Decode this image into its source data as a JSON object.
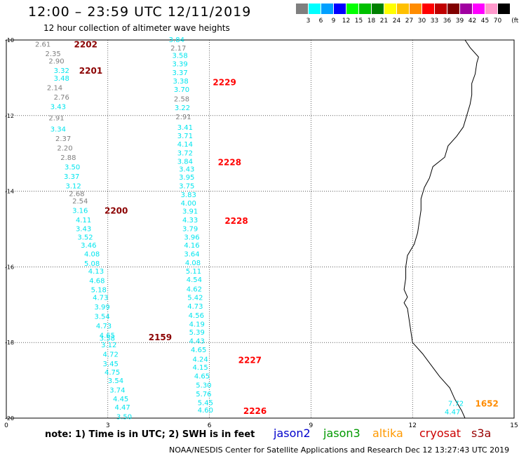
{
  "header": {
    "title": "12:00 – 23:59 UTC 12/11/2019",
    "subtitle": "12 hour collection of altimeter wave heights"
  },
  "legend": {
    "unit": "(ft)",
    "bins": [
      {
        "label": "3",
        "color": "#7f7f7f"
      },
      {
        "label": "6",
        "color": "#00ffff"
      },
      {
        "label": "9",
        "color": "#00a0ff"
      },
      {
        "label": "12",
        "color": "#0000ff"
      },
      {
        "label": "15",
        "color": "#00ff00"
      },
      {
        "label": "18",
        "color": "#00c000"
      },
      {
        "label": "21",
        "color": "#008000"
      },
      {
        "label": "24",
        "color": "#ffff00"
      },
      {
        "label": "27",
        "color": "#ffc000"
      },
      {
        "label": "30",
        "color": "#ff8c00"
      },
      {
        "label": "33",
        "color": "#ff0000"
      },
      {
        "label": "36",
        "color": "#c00000"
      },
      {
        "label": "39",
        "color": "#800000"
      },
      {
        "label": "42",
        "color": "#a000a0"
      },
      {
        "label": "45",
        "color": "#ff00ff"
      },
      {
        "label": "70",
        "color": "#ff99cc"
      },
      {
        "label": "",
        "color": "#000000"
      }
    ]
  },
  "map": {
    "lon_ticks": [
      "0",
      "3",
      "6",
      "9",
      "12",
      "15"
    ],
    "lat_ticks": [
      "-10",
      "-12",
      "-14",
      "-16",
      "-18",
      "-20"
    ],
    "lon_range": [
      0,
      15
    ],
    "lat_range": [
      -10,
      -20
    ],
    "grid": true
  },
  "tracks": [
    {
      "time_label": "2202",
      "time_color": "#8b0000",
      "time_lat": -10.1,
      "time_lon": 2.0,
      "points": [
        [
          -10.1,
          0.85,
          "2.61",
          "#7f7f7f"
        ],
        [
          -10.35,
          1.15,
          "2.35",
          "#7f7f7f"
        ],
        [
          -10.55,
          1.25,
          "2.90",
          "#7f7f7f"
        ]
      ]
    },
    {
      "time_label": "2201",
      "time_color": "#8b0000",
      "time_lat": -10.8,
      "time_lon": 2.15,
      "points": [
        [
          -10.8,
          1.4,
          "3.32",
          "#00e5ee"
        ],
        [
          -11.0,
          1.4,
          "3.48",
          "#00e5ee"
        ],
        [
          -11.25,
          1.2,
          "2.14",
          "#7f7f7f"
        ],
        [
          -11.5,
          1.4,
          "2.76",
          "#7f7f7f"
        ],
        [
          -11.75,
          1.3,
          "3.43",
          "#00e5ee"
        ],
        [
          -12.05,
          1.25,
          "2.91",
          "#7f7f7f"
        ],
        [
          -12.35,
          1.3,
          "3.34",
          "#00e5ee"
        ],
        [
          -12.6,
          1.45,
          "2.37",
          "#7f7f7f"
        ],
        [
          -12.85,
          1.5,
          "2.20",
          "#7f7f7f"
        ],
        [
          -13.1,
          1.6,
          "2.88",
          "#7f7f7f"
        ],
        [
          -13.35,
          1.72,
          "3.50",
          "#00e5ee"
        ],
        [
          -13.6,
          1.7,
          "3.37",
          "#00e5ee"
        ],
        [
          -13.85,
          1.75,
          "3.12",
          "#00e5ee"
        ],
        [
          -14.05,
          1.85,
          "2.68",
          "#7f7f7f"
        ],
        [
          -14.25,
          1.95,
          "2.54",
          "#7f7f7f"
        ]
      ]
    },
    {
      "time_label": "2200",
      "time_color": "#8b0000",
      "time_lat": -14.5,
      "time_lon": 2.9,
      "points": [
        [
          -14.5,
          1.95,
          "3.16",
          "#00e5ee"
        ],
        [
          -14.75,
          2.05,
          "4.11",
          "#00e5ee"
        ],
        [
          -14.98,
          2.05,
          "3.43",
          "#00e5ee"
        ],
        [
          -15.2,
          2.1,
          "3.52",
          "#00e5ee"
        ],
        [
          -15.42,
          2.2,
          "3.46",
          "#00e5ee"
        ],
        [
          -15.65,
          2.3,
          "4.08",
          "#00e5ee"
        ],
        [
          -15.9,
          2.3,
          "5.08",
          "#00e5ee"
        ],
        [
          -16.1,
          2.42,
          "4.13",
          "#00e5ee"
        ],
        [
          -16.35,
          2.45,
          "4.68",
          "#00e5ee"
        ],
        [
          -16.6,
          2.5,
          "5.18",
          "#00e5ee"
        ],
        [
          -16.8,
          2.55,
          "4.73",
          "#00e5ee"
        ],
        [
          -17.05,
          2.6,
          "3.99",
          "#00e5ee"
        ],
        [
          -17.3,
          2.6,
          "3.54",
          "#00e5ee"
        ],
        [
          -17.55,
          2.65,
          "4.73",
          "#00e5ee"
        ]
      ]
    },
    {
      "time_label": "2159",
      "time_color": "#8b0000",
      "time_lat": -17.85,
      "time_lon": 4.2,
      "points": [
        [
          -17.8,
          2.75,
          "4.65",
          "#00e5ee"
        ],
        [
          -17.88,
          2.75,
          "3.58",
          "#00e5ee"
        ],
        [
          -18.05,
          2.8,
          "3.12",
          "#00e5ee"
        ],
        [
          -18.3,
          2.85,
          "4.72",
          "#00e5ee"
        ],
        [
          -18.55,
          2.85,
          "3.45",
          "#00e5ee"
        ],
        [
          -18.78,
          2.9,
          "4.75",
          "#00e5ee"
        ],
        [
          -19.0,
          3.0,
          "3.54",
          "#00e5ee"
        ],
        [
          -19.25,
          3.05,
          "3.74",
          "#00e5ee"
        ],
        [
          -19.48,
          3.15,
          "4.45",
          "#00e5ee"
        ],
        [
          -19.7,
          3.2,
          "4.47",
          "#00e5ee"
        ],
        [
          -19.95,
          3.25,
          "3.50",
          "#00e5ee"
        ]
      ]
    },
    {
      "time_label": "2229",
      "time_color": "#ff0000",
      "time_lat": -11.1,
      "time_lon": 6.1,
      "points": [
        [
          -9.98,
          4.8,
          "3.84",
          "#00e5ee"
        ],
        [
          -10.2,
          4.85,
          "2.17",
          "#7f7f7f"
        ],
        [
          -10.4,
          4.9,
          "3.58",
          "#00e5ee"
        ],
        [
          -10.62,
          4.9,
          "3.39",
          "#00e5ee"
        ],
        [
          -10.85,
          4.9,
          "3.37",
          "#00e5ee"
        ],
        [
          -11.08,
          4.92,
          "3.38",
          "#00e5ee"
        ],
        [
          -11.3,
          4.95,
          "3.70",
          "#00e5ee"
        ],
        [
          -11.55,
          4.95,
          "2.58",
          "#7f7f7f"
        ],
        [
          -11.78,
          4.97,
          "3.22",
          "#00e5ee"
        ],
        [
          -12.02,
          5.0,
          "2.91",
          "#7f7f7f"
        ],
        [
          -12.3,
          5.05,
          "3.41",
          "#00e5ee"
        ],
        [
          -12.52,
          5.05,
          "3.71",
          "#00e5ee"
        ],
        [
          -12.75,
          5.05,
          "4.14",
          "#00e5ee"
        ],
        [
          -12.98,
          5.05,
          "3.72",
          "#00e5ee"
        ]
      ]
    },
    {
      "time_label": "2228",
      "time_color": "#ff0000",
      "time_lat": -13.22,
      "time_lon": 6.25,
      "points": [
        [
          -13.2,
          5.05,
          "3.84",
          "#00e5ee"
        ],
        [
          -13.4,
          5.1,
          "3.43",
          "#00e5ee"
        ],
        [
          -13.62,
          5.1,
          "3.95",
          "#00e5ee"
        ],
        [
          -13.85,
          5.1,
          "3.75",
          "#00e5ee"
        ],
        [
          -14.08,
          5.15,
          "3.83",
          "#00e5ee"
        ],
        [
          -14.3,
          5.15,
          "4.00",
          "#00e5ee"
        ],
        [
          -14.52,
          5.2,
          "3.91",
          "#00e5ee"
        ]
      ]
    },
    {
      "time_label": "2228",
      "time_color": "#ff0000",
      "time_lat": -14.77,
      "time_lon": 6.45,
      "points": [
        [
          -14.75,
          5.2,
          "4.33",
          "#00e5ee"
        ],
        [
          -14.98,
          5.2,
          "3.79",
          "#00e5ee"
        ],
        [
          -15.2,
          5.25,
          "3.96",
          "#00e5ee"
        ],
        [
          -15.42,
          5.25,
          "4.16",
          "#00e5ee"
        ],
        [
          -15.65,
          5.25,
          "3.64",
          "#00e5ee"
        ],
        [
          -15.88,
          5.28,
          "4.08",
          "#00e5ee"
        ],
        [
          -16.1,
          5.3,
          "5.11",
          "#00e5ee"
        ],
        [
          -16.33,
          5.32,
          "4.54",
          "#00e5ee"
        ],
        [
          -16.58,
          5.32,
          "4.62",
          "#00e5ee"
        ],
        [
          -16.8,
          5.35,
          "5.42",
          "#00e5ee"
        ],
        [
          -17.03,
          5.35,
          "4.73",
          "#00e5ee"
        ],
        [
          -17.27,
          5.38,
          "4.56",
          "#00e5ee"
        ],
        [
          -17.5,
          5.4,
          "4.19",
          "#00e5ee"
        ],
        [
          -17.72,
          5.4,
          "5.39",
          "#00e5ee"
        ],
        [
          -17.95,
          5.4,
          "4.43",
          "#00e5ee"
        ],
        [
          -18.18,
          5.45,
          "4.65",
          "#00e5ee"
        ]
      ]
    },
    {
      "time_label": "2227",
      "time_color": "#ff0000",
      "time_lat": -18.45,
      "time_lon": 6.85,
      "points": [
        [
          -18.43,
          5.5,
          "4.24",
          "#00e5ee"
        ],
        [
          -18.65,
          5.5,
          "4.15",
          "#00e5ee"
        ],
        [
          -18.88,
          5.55,
          "4.65",
          "#00e5ee"
        ],
        [
          -19.12,
          5.6,
          "5.30",
          "#00e5ee"
        ],
        [
          -19.35,
          5.6,
          "5.76",
          "#00e5ee"
        ],
        [
          -19.58,
          5.65,
          "5.45",
          "#00e5ee"
        ]
      ]
    },
    {
      "time_label": "2226",
      "time_color": "#ff0000",
      "time_lat": -19.8,
      "time_lon": 7.0,
      "points": [
        [
          -19.78,
          5.65,
          "4.60",
          "#00e5ee"
        ]
      ]
    },
    {
      "time_label": "1652",
      "time_color": "#ff8c00",
      "time_lat": -19.6,
      "time_lon": 13.85,
      "points": [
        [
          -19.6,
          13.05,
          "7.72",
          "#00e5ee"
        ],
        [
          -19.82,
          12.95,
          "4.47",
          "#00e5ee"
        ]
      ]
    }
  ],
  "coastline": [
    [
      -10.0,
      13.55
    ],
    [
      -10.2,
      13.7
    ],
    [
      -10.45,
      13.95
    ],
    [
      -10.6,
      13.9
    ],
    [
      -10.9,
      13.85
    ],
    [
      -11.15,
      13.75
    ],
    [
      -11.45,
      13.75
    ],
    [
      -11.7,
      13.7
    ],
    [
      -12.0,
      13.6
    ],
    [
      -12.3,
      13.5
    ],
    [
      -12.55,
      13.3
    ],
    [
      -12.8,
      13.05
    ],
    [
      -13.1,
      12.95
    ],
    [
      -13.35,
      12.6
    ],
    [
      -13.65,
      12.5
    ],
    [
      -13.9,
      12.35
    ],
    [
      -14.2,
      12.25
    ],
    [
      -14.5,
      12.25
    ],
    [
      -14.8,
      12.2
    ],
    [
      -15.1,
      12.15
    ],
    [
      -15.4,
      12.05
    ],
    [
      -15.7,
      11.85
    ],
    [
      -16.0,
      11.8
    ],
    [
      -16.3,
      11.8
    ],
    [
      -16.6,
      11.75
    ],
    [
      -16.8,
      11.85
    ],
    [
      -16.95,
      11.75
    ],
    [
      -17.1,
      11.85
    ],
    [
      -17.4,
      11.9
    ],
    [
      -17.7,
      11.95
    ],
    [
      -18.0,
      12.0
    ],
    [
      -18.3,
      12.3
    ],
    [
      -18.6,
      12.55
    ],
    [
      -18.9,
      12.8
    ],
    [
      -19.2,
      13.1
    ],
    [
      -19.5,
      13.25
    ],
    [
      -19.8,
      13.45
    ],
    [
      -20.0,
      13.55
    ]
  ],
  "footer": {
    "note": "note: 1) Time is in UTC; 2) SWH is in feet",
    "satellites": [
      {
        "name": "jason2",
        "color": "#0000cc"
      },
      {
        "name": "jason3",
        "color": "#009900"
      },
      {
        "name": "altika",
        "color": "#ff9900"
      },
      {
        "name": "cryosat",
        "color": "#cc0000"
      },
      {
        "name": "s3a",
        "color": "#990000"
      }
    ],
    "credit": "NOAA/NESDIS Center for Satellite Applications and Research    Dec 12 13:27:43 UTC 2019"
  }
}
